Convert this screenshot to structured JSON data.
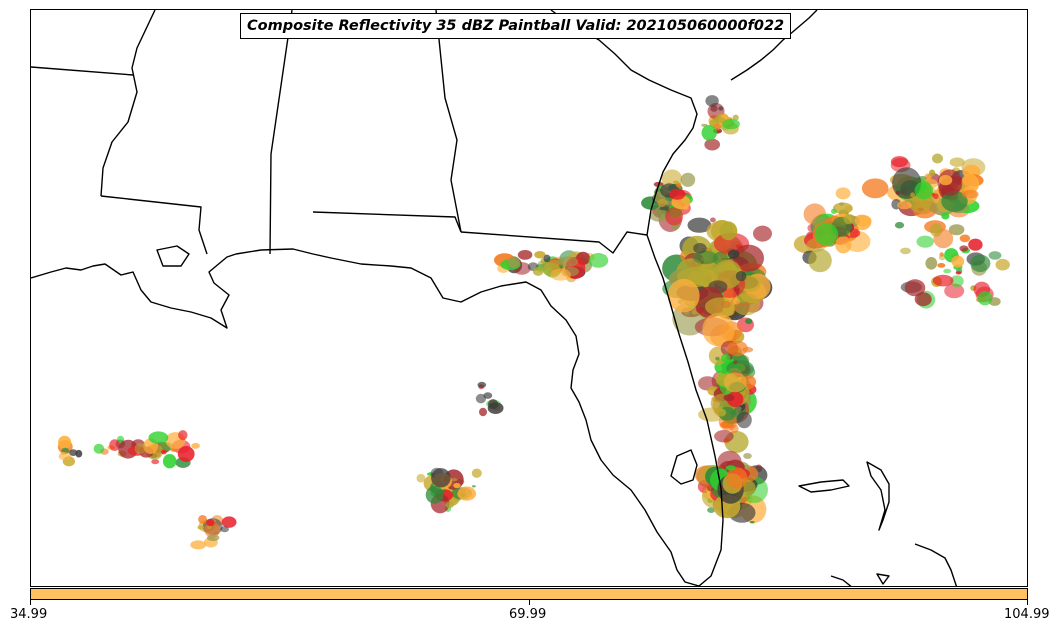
{
  "title": "Composite Reflectivity 35 dBZ Paintball Valid: 202105060000f022",
  "colorbar": {
    "color": "#FFC062",
    "ticks": [
      "34.99",
      "69.99",
      "104.99"
    ]
  },
  "member_colors": [
    "#E8212B",
    "#A7282C",
    "#9A9A4E",
    "#FFAE3B",
    "#2E8B3A",
    "#2FD12F",
    "#B4A82E",
    "#3C3C3C",
    "#F47A1E",
    "#C9A92F"
  ],
  "chart_data": {
    "type": "map",
    "title": "Composite Reflectivity 35 dBZ Paintball Valid: 202105060000f022",
    "region": "Southeastern United States (Mississippi, Alabama, Georgia, Florida, Gulf of Mexico, western Atlantic)",
    "field": "Composite Reflectivity >= 35 dBZ paintball (ensemble members)",
    "valid": "202105060000f022",
    "colorbar": {
      "ticks": [
        34.99,
        69.99,
        104.99
      ],
      "color": "#FFC062"
    }
  }
}
